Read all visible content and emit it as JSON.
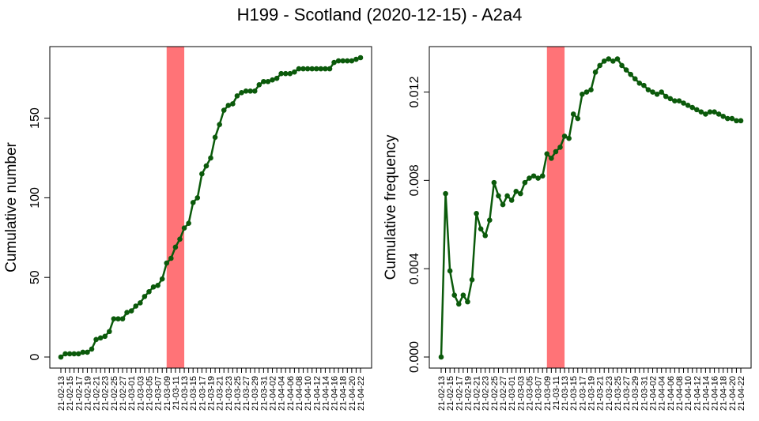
{
  "title": "H199 - Scotland (2020-12-15) - A2a4",
  "chart_data": [
    {
      "type": "line",
      "ylabel": "Cumulative number",
      "ylim": [
        0,
        188
      ],
      "yticks": [
        0,
        50,
        100,
        150
      ],
      "ytick_labels": [
        "0",
        "50",
        "100",
        "150"
      ],
      "x": [
        "21-02-13",
        "21-02-14",
        "21-02-15",
        "21-02-16",
        "21-02-17",
        "21-02-18",
        "21-02-19",
        "21-02-20",
        "21-02-21",
        "21-02-22",
        "21-02-23",
        "21-02-24",
        "21-02-25",
        "21-02-26",
        "21-02-27",
        "21-02-28",
        "21-03-01",
        "21-03-02",
        "21-03-03",
        "21-03-04",
        "21-03-05",
        "21-03-06",
        "21-03-07",
        "21-03-08",
        "21-03-09",
        "21-03-10",
        "21-03-11",
        "21-03-12",
        "21-03-13",
        "21-03-14",
        "21-03-15",
        "21-03-16",
        "21-03-17",
        "21-03-18",
        "21-03-19",
        "21-03-20",
        "21-03-21",
        "21-03-22",
        "21-03-23",
        "21-03-24",
        "21-03-25",
        "21-03-26",
        "21-03-27",
        "21-03-28",
        "21-03-29",
        "21-03-30",
        "21-03-31",
        "21-04-01",
        "21-04-02",
        "21-04-03",
        "21-04-04",
        "21-04-05",
        "21-04-06",
        "21-04-07",
        "21-04-08",
        "21-04-09",
        "21-04-10",
        "21-04-11",
        "21-04-12",
        "21-04-13",
        "21-04-14",
        "21-04-15",
        "21-04-16",
        "21-04-17",
        "21-04-18",
        "21-04-19",
        "21-04-20",
        "21-04-21",
        "21-04-22"
      ],
      "xtick_labels": [
        "21-02-13",
        "21-02-15",
        "21-02-17",
        "21-02-19",
        "21-02-21",
        "21-02-23",
        "21-02-25",
        "21-02-27",
        "21-03-01",
        "21-03-03",
        "21-03-05",
        "21-03-07",
        "21-03-09",
        "21-03-11",
        "21-03-13",
        "21-03-15",
        "21-03-17",
        "21-03-19",
        "21-03-21",
        "21-03-23",
        "21-03-25",
        "21-03-27",
        "21-03-29",
        "21-03-31",
        "21-04-02",
        "21-04-04",
        "21-04-06",
        "21-04-08",
        "21-04-10",
        "21-04-12",
        "21-04-14",
        "21-04-16",
        "21-04-18",
        "21-04-20",
        "21-04-22"
      ],
      "highlight": {
        "from": "21-03-09",
        "to": "21-03-13",
        "color": "#ff7377"
      },
      "series": [
        {
          "color": "#0b5a0b",
          "values": [
            0,
            2,
            2,
            2,
            2,
            3,
            3,
            5,
            11,
            12,
            13,
            16,
            24,
            24,
            24,
            28,
            29,
            32,
            34,
            38,
            41,
            44,
            45,
            49,
            59,
            62,
            69,
            74,
            81,
            84,
            97,
            100,
            115,
            120,
            125,
            138,
            146,
            155,
            158,
            159,
            164,
            166,
            167,
            167,
            167,
            171,
            173,
            173,
            174,
            175,
            178,
            178,
            178,
            179,
            181,
            181,
            181,
            181,
            181,
            181,
            181,
            181,
            185,
            186,
            186,
            186,
            186,
            187,
            188
          ]
        }
      ]
    },
    {
      "type": "line",
      "ylabel": "Cumulative frequency",
      "ylim": [
        0,
        0.01395
      ],
      "yticks": [
        0,
        0.004,
        0.008,
        0.012
      ],
      "ytick_labels": [
        "0.000",
        "0.004",
        "0.008",
        "0.012"
      ],
      "x": [
        "21-02-13",
        "21-02-14",
        "21-02-15",
        "21-02-16",
        "21-02-17",
        "21-02-18",
        "21-02-19",
        "21-02-20",
        "21-02-21",
        "21-02-22",
        "21-02-23",
        "21-02-24",
        "21-02-25",
        "21-02-26",
        "21-02-27",
        "21-02-28",
        "21-03-01",
        "21-03-02",
        "21-03-03",
        "21-03-04",
        "21-03-05",
        "21-03-06",
        "21-03-07",
        "21-03-08",
        "21-03-09",
        "21-03-10",
        "21-03-11",
        "21-03-12",
        "21-03-13",
        "21-03-14",
        "21-03-15",
        "21-03-16",
        "21-03-17",
        "21-03-18",
        "21-03-19",
        "21-03-20",
        "21-03-21",
        "21-03-22",
        "21-03-23",
        "21-03-24",
        "21-03-25",
        "21-03-26",
        "21-03-27",
        "21-03-28",
        "21-03-29",
        "21-03-30",
        "21-03-31",
        "21-04-01",
        "21-04-02",
        "21-04-03",
        "21-04-04",
        "21-04-05",
        "21-04-06",
        "21-04-07",
        "21-04-08",
        "21-04-09",
        "21-04-10",
        "21-04-11",
        "21-04-12",
        "21-04-13",
        "21-04-14",
        "21-04-15",
        "21-04-16",
        "21-04-17",
        "21-04-18",
        "21-04-19",
        "21-04-20",
        "21-04-21",
        "21-04-22"
      ],
      "xtick_labels": [
        "21-02-13",
        "21-02-15",
        "21-02-17",
        "21-02-19",
        "21-02-21",
        "21-02-23",
        "21-02-25",
        "21-02-27",
        "21-03-01",
        "21-03-03",
        "21-03-05",
        "21-03-07",
        "21-03-09",
        "21-03-11",
        "21-03-13",
        "21-03-15",
        "21-03-17",
        "21-03-19",
        "21-03-21",
        "21-03-23",
        "21-03-25",
        "21-03-27",
        "21-03-29",
        "21-03-31",
        "21-04-02",
        "21-04-04",
        "21-04-06",
        "21-04-08",
        "21-04-10",
        "21-04-12",
        "21-04-14",
        "21-04-16",
        "21-04-18",
        "21-04-20",
        "21-04-22"
      ],
      "highlight": {
        "from": "21-03-09",
        "to": "21-03-13",
        "color": "#ff7377"
      },
      "series": [
        {
          "color": "#0b5a0b",
          "values": [
            0.0,
            0.0074,
            0.0039,
            0.0028,
            0.0024,
            0.0028,
            0.0025,
            0.0035,
            0.0065,
            0.0058,
            0.0055,
            0.0062,
            0.0079,
            0.0073,
            0.0069,
            0.0073,
            0.0071,
            0.0075,
            0.0074,
            0.0079,
            0.0081,
            0.0082,
            0.0081,
            0.0082,
            0.0092,
            0.009,
            0.0093,
            0.0095,
            0.01,
            0.0099,
            0.011,
            0.0108,
            0.0119,
            0.012,
            0.0121,
            0.0129,
            0.0132,
            0.0134,
            0.0135,
            0.0134,
            0.0135,
            0.0132,
            0.013,
            0.0128,
            0.0126,
            0.0124,
            0.0123,
            0.0121,
            0.012,
            0.0119,
            0.012,
            0.0118,
            0.0117,
            0.0116,
            0.0116,
            0.0115,
            0.0114,
            0.0113,
            0.0112,
            0.0111,
            0.011,
            0.0111,
            0.0111,
            0.011,
            0.0109,
            0.0108,
            0.0108,
            0.0107,
            0.0107
          ]
        }
      ]
    }
  ]
}
